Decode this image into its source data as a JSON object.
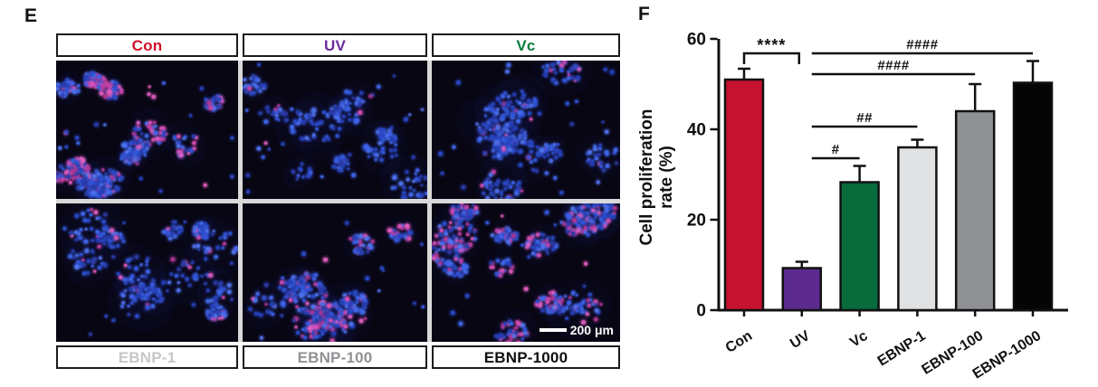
{
  "figure": {
    "panelE": {
      "letter": "E",
      "top_labels": [
        {
          "text": "Con",
          "color": "#d0112b"
        },
        {
          "text": "UV",
          "color": "#6a2c9e"
        },
        {
          "text": "Vc",
          "color": "#077c3d"
        }
      ],
      "bottom_labels": [
        {
          "text": "EBNP-1",
          "color": "#c6c7c9"
        },
        {
          "text": "EBNP-100",
          "color": "#8f9194"
        },
        {
          "text": "EBNP-1000",
          "color": "#0f0f0f"
        }
      ],
      "scale_bar": {
        "label": "200 μm"
      },
      "micrograph_style": {
        "background": "#080613",
        "nucleus_colors": [
          "#2740b8",
          "#3355d8",
          "#3f66ea",
          "#2a3ba6",
          "#4f74ee",
          "#2b49c6"
        ],
        "proliferating_colors": [
          "#c23fa4",
          "#d94fb5",
          "#b03793",
          "#e25ec0"
        ]
      },
      "micrographs": [
        {
          "name": "Con",
          "seed": 11,
          "clusters": 13,
          "dots_per_cluster": 40,
          "loose_dots": 26,
          "pink_ratio": 0.34
        },
        {
          "name": "UV",
          "seed": 22,
          "clusters": 12,
          "dots_per_cluster": 20,
          "loose_dots": 30,
          "pink_ratio": 0.02
        },
        {
          "name": "Vc",
          "seed": 33,
          "clusters": 12,
          "dots_per_cluster": 27,
          "loose_dots": 22,
          "pink_ratio": 0.1
        },
        {
          "name": "EBNP-1",
          "seed": 44,
          "clusters": 13,
          "dots_per_cluster": 28,
          "loose_dots": 25,
          "pink_ratio": 0.1
        },
        {
          "name": "EBNP-100",
          "seed": 55,
          "clusters": 12,
          "dots_per_cluster": 30,
          "loose_dots": 20,
          "pink_ratio": 0.18
        },
        {
          "name": "EBNP-1000",
          "seed": 66,
          "clusters": 13,
          "dots_per_cluster": 38,
          "loose_dots": 22,
          "pink_ratio": 0.24
        }
      ]
    },
    "panelF": {
      "letter": "F"
    }
  },
  "chart_data": {
    "type": "bar",
    "title": "",
    "ylabel_lines": [
      "Cell proliferation",
      "rate (%)"
    ],
    "categories": [
      "Con",
      "UV",
      "Vc",
      "EBNP-1",
      "EBNP-100",
      "EBNP-1000"
    ],
    "values": [
      51,
      9.3,
      28.3,
      36,
      44,
      50.3
    ],
    "errors": [
      2.4,
      1.4,
      3.6,
      1.7,
      6,
      4.8
    ],
    "bar_colors": [
      "#c4122f",
      "#5c2a8f",
      "#076b3b",
      "#e0e1e2",
      "#8f9194",
      "#050505"
    ],
    "axis_color": "#111111",
    "ylim": [
      0,
      60
    ],
    "yticks": [
      0,
      20,
      40,
      60
    ],
    "grid": false,
    "legend": "none",
    "significance": [
      {
        "type": "bracket",
        "from": "Con",
        "to": "UV",
        "label": "****"
      },
      {
        "type": "line",
        "from": "UV",
        "to": "Vc",
        "label": "#"
      },
      {
        "type": "line",
        "from": "UV",
        "to": "EBNP-1",
        "label": "##"
      },
      {
        "type": "line",
        "from": "UV",
        "to": "EBNP-100",
        "label": "####"
      },
      {
        "type": "line",
        "from": "UV",
        "to": "EBNP-1000",
        "label": "####"
      }
    ]
  }
}
